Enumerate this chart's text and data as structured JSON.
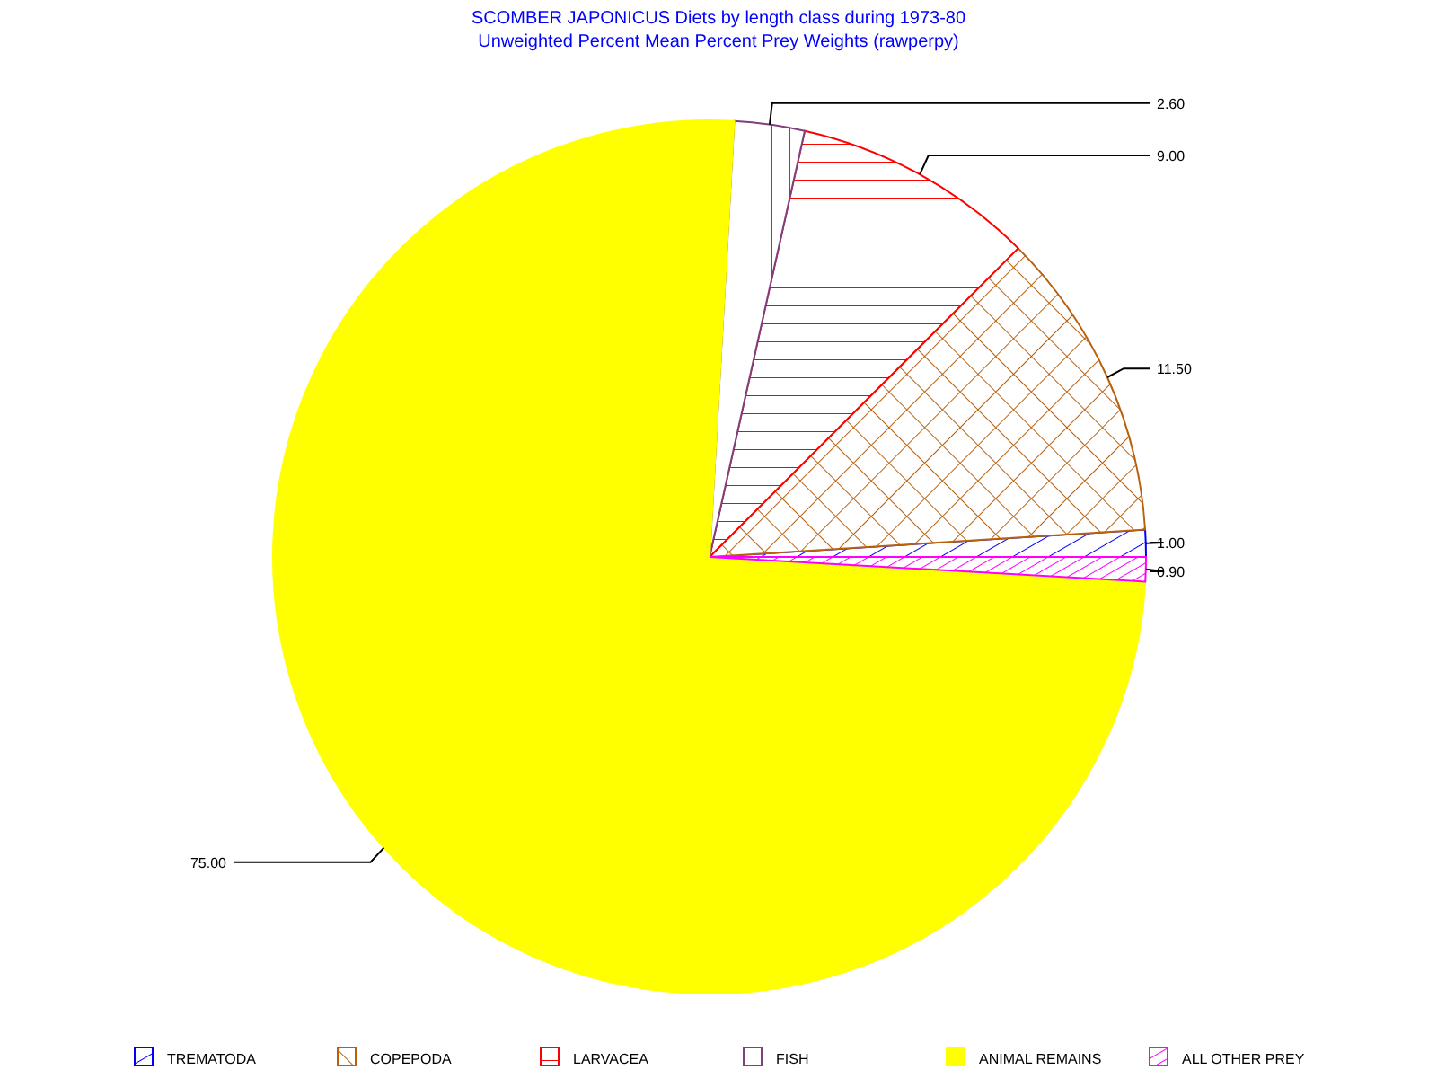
{
  "chart_data": {
    "type": "pie",
    "title": "SCOMBER JAPONICUS Diets by length class during 1973-80",
    "subtitle": "Unweighted Percent Mean Percent Prey  Weights (rawperpy)",
    "categories": [
      "TREMATODA",
      "COPEPODA",
      "LARVACEA",
      "FISH",
      "ANIMAL REMAINS",
      "ALL OTHER PREY"
    ],
    "values": [
      1.0,
      11.5,
      9.0,
      2.6,
      75.0,
      0.9
    ],
    "colors": [
      "#0000ff",
      "#b8600c",
      "#ff0000",
      "#7f3f7f",
      "#ffff00",
      "#ff00ff"
    ],
    "value_labels": [
      "1.00",
      "11.50",
      "9.00",
      "2.60",
      "75.00",
      "0.90"
    ],
    "legend": "bottom"
  }
}
